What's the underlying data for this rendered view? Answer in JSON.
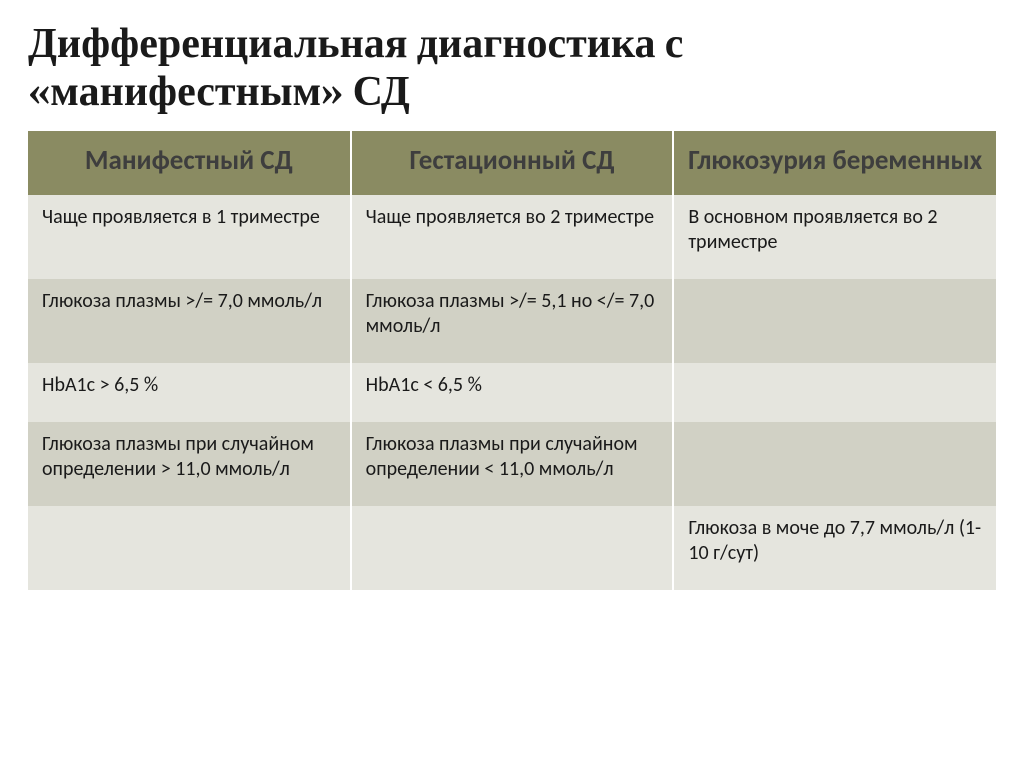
{
  "title_line1": "Дифференциальная диагностика с",
  "title_line2": "«манифестным»  СД",
  "table": {
    "columns": [
      "Манифестный СД",
      "Гестационный СД",
      "Глюкозурия беременных"
    ],
    "rows": [
      [
        "Чаще проявляется в 1 триместре",
        "Чаще проявляется во 2 триместре",
        "В основном проявляется во 2 триместре"
      ],
      [
        "Глюкоза плазмы >/= 7,0 ммоль/л",
        "Глюкоза плазмы >/= 5,1 но </= 7,0 ммоль/л",
        ""
      ],
      [
        "HbA1c > 6,5 %",
        "HbA1c < 6,5 %",
        ""
      ],
      [
        "Глюкоза плазмы при случайном определении > 11,0 ммоль/л",
        "Глюкоза плазмы при случайном определении < 11,0 ммоль/л",
        ""
      ],
      [
        "",
        "",
        "Глюкоза в моче до 7,7 ммоль/л (1-10 г/сут)"
      ]
    ],
    "row_bands": [
      "a",
      "b",
      "a",
      "b",
      "a"
    ],
    "header_bg": "#8a8b62",
    "header_text_color": "#3e3e3e",
    "band_a_bg": "#e5e5de",
    "band_b_bg": "#d1d1c5",
    "cell_font_size_pt": 15,
    "header_font_size_pt": 20,
    "border_color": "#ffffff"
  },
  "title_font_family": "Cambria",
  "title_font_size_pt": 32,
  "background_color": "#ffffff"
}
